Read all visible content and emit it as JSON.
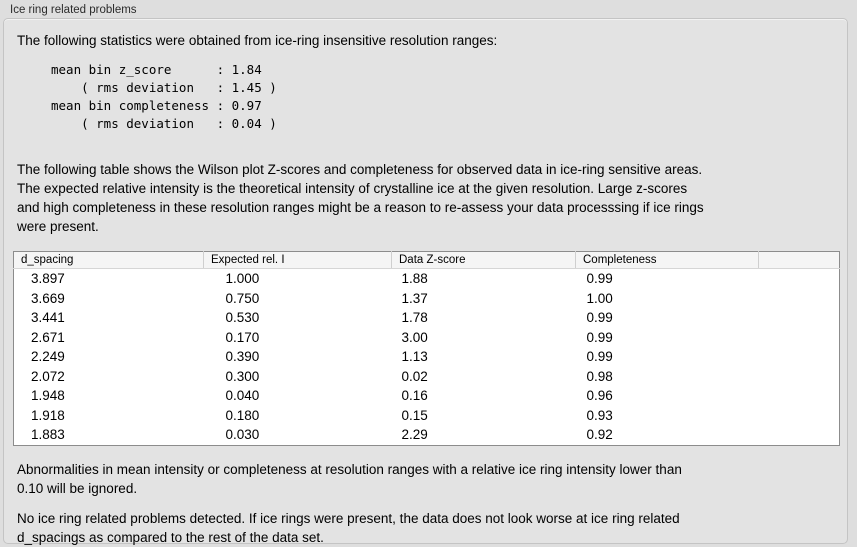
{
  "panel": {
    "title": "Ice ring related problems"
  },
  "stats": {
    "intro": "The following statistics were obtained from ice-ring insensitive resolution ranges:",
    "block_lines": [
      "mean bin z_score      : 1.84",
      "    ( rms deviation   : 1.45 )",
      "mean bin completeness : 0.97",
      "    ( rms deviation   : 0.04 )"
    ],
    "mean_bin_z_score": "1.84",
    "z_score_rms_deviation": "1.45",
    "mean_bin_completeness": "0.97",
    "completeness_rms_deviation": "0.04"
  },
  "description": {
    "lines": [
      "The following table shows the Wilson plot Z-scores and completeness for observed data in ice-ring sensitive areas.",
      "The expected relative intensity is the theoretical intensity of crystalline ice at the given resolution. Large z-scores",
      "and high completeness in these resolution ranges might be a reason to re-assess your data processsing if ice rings",
      "were present."
    ]
  },
  "table": {
    "headers": [
      "d_spacing",
      "Expected rel. I",
      "Data Z-score",
      "Completeness",
      ""
    ],
    "rows": [
      [
        "3.897",
        "1.000",
        "1.88",
        "0.99"
      ],
      [
        "3.669",
        "0.750",
        "1.37",
        "1.00"
      ],
      [
        "3.441",
        "0.530",
        "1.78",
        "0.99"
      ],
      [
        "2.671",
        "0.170",
        "3.00",
        "0.99"
      ],
      [
        "2.249",
        "0.390",
        "1.13",
        "0.99"
      ],
      [
        "2.072",
        "0.300",
        "0.02",
        "0.98"
      ],
      [
        "1.948",
        "0.040",
        "0.16",
        "0.96"
      ],
      [
        "1.918",
        "0.180",
        "0.15",
        "0.93"
      ],
      [
        "1.883",
        "0.030",
        "2.29",
        "0.92"
      ]
    ]
  },
  "footer": {
    "ignore_note_lines": [
      "Abnormalities in mean intensity or completeness at resolution ranges with a relative ice ring intensity lower than",
      "0.10 will be ignored."
    ],
    "conclusion_lines": [
      "No ice ring related problems detected. If ice rings were present, the data does not look worse at ice ring related",
      "d_spacings as compared to the rest of the data set."
    ]
  },
  "colors": {
    "page_background": "#dedede",
    "groupbox_background": "#e3e3e3",
    "groupbox_border": "#c4c4c4",
    "table_border": "#8c8c8c",
    "table_header_background": "#f5f5f5",
    "text": "#000000"
  }
}
